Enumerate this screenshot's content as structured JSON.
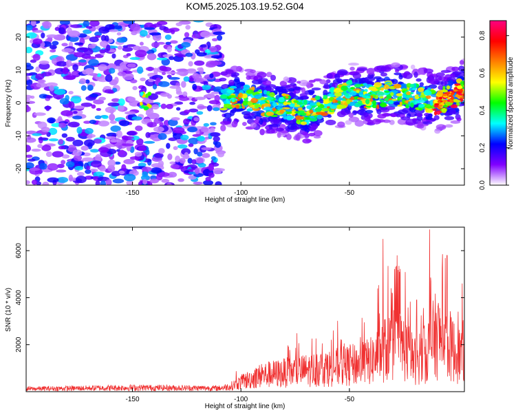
{
  "figure": {
    "title": "KOM5.2025.103.19.52.G04"
  },
  "chart_data": [
    {
      "type": "heatmap",
      "xlabel": "Height of straight line (km)",
      "ylabel": "Frequency (Hz)",
      "xlim": [
        -199,
        3
      ],
      "ylim": [
        -25,
        25
      ],
      "xticks": [
        -150,
        -100,
        -50
      ],
      "yticks": [
        -20,
        -10,
        0,
        10,
        20
      ],
      "colorbar": {
        "label": "Normalized spectral amplitude",
        "range": [
          0,
          0.88
        ],
        "ticks": [
          0.0,
          0.2,
          0.4,
          0.6,
          0.8
        ],
        "colormap": [
          "#ffffff",
          "#8000ff",
          "#0000ff",
          "#00ffff",
          "#00ff00",
          "#ffff00",
          "#ff8000",
          "#ff0000",
          "#ff0080"
        ]
      },
      "ridge": {
        "description_points_x": [
          -109,
          -100,
          -90,
          -80,
          -70,
          -60,
          -50,
          -40,
          -30,
          -20,
          -10,
          0,
          3
        ],
        "center_freq_y": [
          1,
          2,
          0,
          -1,
          -3,
          0,
          3,
          2,
          3,
          2,
          0,
          3,
          4
        ]
      }
    },
    {
      "type": "line",
      "xlabel": "Height of straight line (km)",
      "ylabel": "SNR (10 * v/v)",
      "xlim": [
        -199,
        3
      ],
      "ylim": [
        0,
        7000
      ],
      "xticks": [
        -150,
        -100,
        -50
      ],
      "yticks": [
        2000,
        4000,
        6000
      ],
      "color": "#f03030",
      "envelope": {
        "x": [
          -199,
          -150,
          -110,
          -105,
          -100,
          -90,
          -80,
          -70,
          -60,
          -50,
          -40,
          -35,
          -30,
          -25,
          -20,
          -15,
          -10,
          -5,
          0,
          3
        ],
        "mean": [
          120,
          170,
          150,
          220,
          400,
          700,
          800,
          900,
          1000,
          1100,
          1300,
          1700,
          2000,
          1900,
          1300,
          1600,
          2400,
          2100,
          1500,
          1800
        ],
        "peaks": [
          {
            "x": -34.5,
            "y": 6500
          },
          {
            "x": -28.0,
            "y": 5800
          },
          {
            "x": -13.0,
            "y": 6900
          },
          {
            "x": -5.0,
            "y": 5800
          },
          {
            "x": -19.0,
            "y": 3900
          },
          {
            "x": 2.0,
            "y": 4600
          }
        ]
      }
    }
  ]
}
